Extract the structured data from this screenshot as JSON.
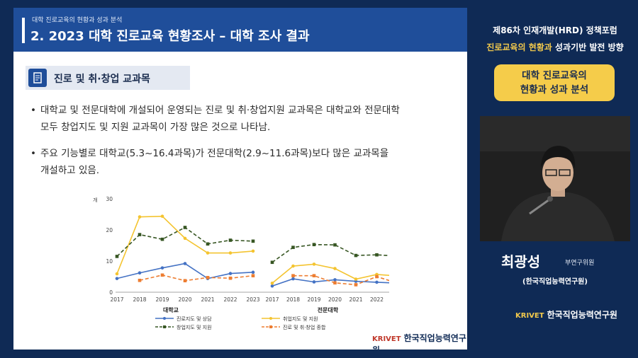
{
  "slide": {
    "header_sub": "대학 진로교육의 현황과 성과 분석",
    "header_title": "2. 2023 대학 진로교육 현황조사 – 대학 조사 결과",
    "section_label": "진로 및 취·창업 교과목",
    "section_icon": "document-icon",
    "bullets": [
      {
        "l1": "대학교 및 전문대학에 개설되어 운영되는 진로 및 취·창업지원 교과목은 대학교와 전문대학",
        "l2": "모두 창업지도 및 지원 교과목이 가장 많은 것으로 나타남."
      },
      {
        "l1": "주요 기능별로 대학교(5.3~16.4과목)가 전문대학(2.9~11.6과목)보다 많은 교과목을",
        "l2": "개설하고 있음."
      }
    ],
    "logo_text": "한국직업능력연구원",
    "logo_mark": "KRIVET"
  },
  "chart_data": {
    "type": "line",
    "yunit": "개",
    "ylim": [
      0,
      30
    ],
    "yticks": [
      "30",
      "20",
      "10",
      "0"
    ],
    "x": [
      "2017",
      "2018",
      "2019",
      "2020",
      "2021",
      "2022",
      "2023"
    ],
    "panels": [
      {
        "label": "대학교",
        "series": [
          {
            "name": "진로지도 및 상담",
            "color": "#4472c4",
            "dash": false,
            "values": [
              4.4,
              6.2,
              7.8,
              9.2,
              4.4,
              6.0,
              6.4
            ]
          },
          {
            "name": "취업지도 및 지원",
            "color": "#f4c430",
            "dash": false,
            "values": [
              5.9,
              24.2,
              24.4,
              17.3,
              12.6,
              12.6,
              13.2
            ]
          },
          {
            "name": "창업지도 및 지원",
            "color": "#375623",
            "dash": true,
            "values": [
              11.5,
              18.5,
              17.0,
              20.8,
              15.5,
              16.7,
              16.4
            ]
          },
          {
            "name": "진로 및 취·창업 종합",
            "color": "#ed7d31",
            "dash": true,
            "values": [
              null,
              3.8,
              5.5,
              3.7,
              4.7,
              4.5,
              5.3
            ]
          }
        ]
      },
      {
        "label": "전문대학",
        "series": [
          {
            "name": "진로지도 및 상담",
            "color": "#4472c4",
            "dash": false,
            "values": [
              2.0,
              4.3,
              3.3,
              4.0,
              3.5,
              3.2,
              2.9
            ]
          },
          {
            "name": "취업지도 및 지원",
            "color": "#f4c430",
            "dash": false,
            "values": [
              2.9,
              8.4,
              9.0,
              7.6,
              4.2,
              5.7,
              5.2
            ]
          },
          {
            "name": "창업지도 및 지원",
            "color": "#375623",
            "dash": true,
            "values": [
              9.6,
              14.4,
              15.3,
              15.2,
              11.8,
              12.0,
              11.6
            ]
          },
          {
            "name": "진로 및 취·창업 종합",
            "color": "#ed7d31",
            "dash": true,
            "values": [
              null,
              5.3,
              5.3,
              3.0,
              2.4,
              5.0,
              2.9
            ]
          }
        ]
      }
    ]
  },
  "sidebar": {
    "forum_line1": "제86차 인재개발(HRD) 정책포럼",
    "forum_line2_hl": "진로교육의 현황과",
    "forum_line2_rest": " 성과기반 발전 방향",
    "badge_line1": "대학 진로교육의",
    "badge_line2": "현황과 성과 분석",
    "speaker_name": "최광성",
    "speaker_rank": "부연구위원",
    "speaker_org": "(한국직업능력연구원)",
    "logo_mark": "KRIVET",
    "logo_text": "한국직업능력연구원"
  }
}
